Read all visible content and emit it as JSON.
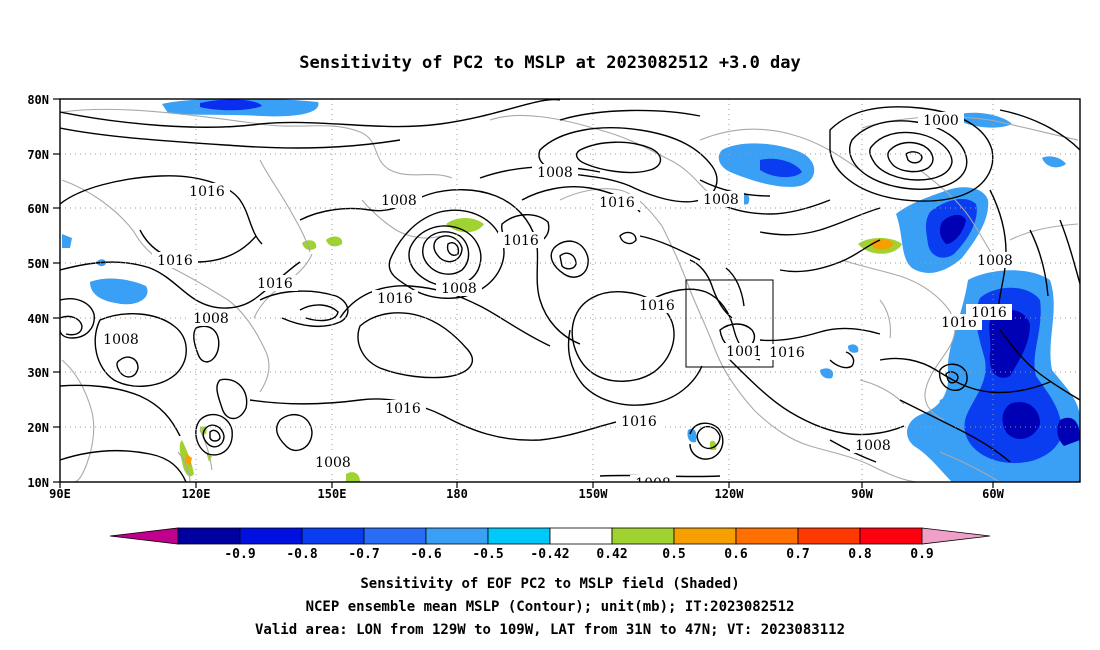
{
  "title": "Sensitivity of PC2 to MSLP at 2023082512 +3.0 day",
  "map": {
    "lon_labels": [
      "90E",
      "120E",
      "150E",
      "180",
      "150W",
      "120W",
      "90W",
      "60W"
    ],
    "lat_labels": [
      "80N",
      "70N",
      "60N",
      "50N",
      "40N",
      "30N",
      "20N",
      "10N"
    ],
    "contour_labels": [
      "1016",
      "1016",
      "1016",
      "1016",
      "1016",
      "1016",
      "1016",
      "1016",
      "1016",
      "1016",
      "1008",
      "1008",
      "1008",
      "1008",
      "1008",
      "1008",
      "1008",
      "1008",
      "1008",
      "1008",
      "1000",
      "1001"
    ],
    "valid_box": {
      "lon": [
        -129,
        -109
      ],
      "lat": [
        31,
        47
      ]
    },
    "colors": {
      "dark_blue": "#0000b4",
      "blue": "#0a2df0",
      "mid_blue": "#2a6df5",
      "light_blue": "#3aa0f5",
      "cyan": "#00c8f8",
      "green": "#a0d232",
      "orange": "#f5a000",
      "red_orange": "#ff3a00"
    }
  },
  "colorbar": {
    "labels": [
      "-0.9",
      "-0.8",
      "-0.7",
      "-0.6",
      "-0.5",
      "-0.42",
      "0.42",
      "0.5",
      "0.6",
      "0.7",
      "0.8",
      "0.9"
    ],
    "colors": [
      "#0000a0",
      "#0010e0",
      "#0a3cf0",
      "#2a6df5",
      "#3aa0f5",
      "#00c8f8",
      "#ffffff",
      "#a0d232",
      "#f5a000",
      "#ff7000",
      "#ff3a00",
      "#ff0010"
    ],
    "low_end_color": "#c0008c",
    "high_end_color": "#f0a0c8"
  },
  "captions": [
    "Sensitivity of EOF PC2 to MSLP field (Shaded)",
    "NCEP ensemble mean MSLP (Contour); unit(mb); IT:2023082512",
    "Valid area: LON from 129W to 109W, LAT from 31N to 47N; VT: 2023083112"
  ]
}
